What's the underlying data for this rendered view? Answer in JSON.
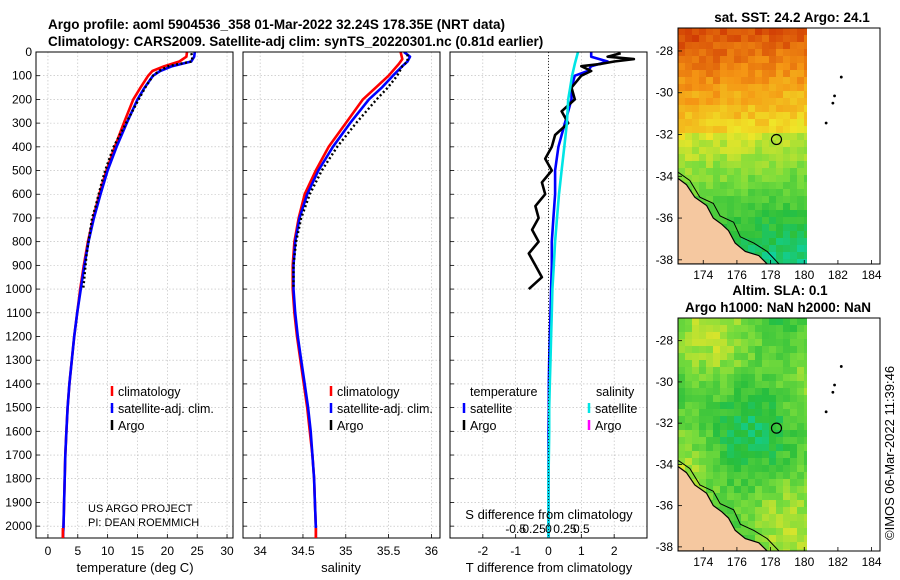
{
  "header": {
    "line1": "Argo profile: aoml 5904536_358 01-Mar-2022 32.24S 178.35E (NRT data)",
    "line2": "Climatology: CARS2009. Satellite-adj clim: synTS_20220301.nc (0.81d earlier)"
  },
  "credit": {
    "project": "US ARGO PROJECT",
    "pi": "PI: DEAN ROEMMICH"
  },
  "timestamp": "©IMOS 06-Mar-2022 11:39:46",
  "colors": {
    "climatology": "#ff0000",
    "satellite": "#0000ff",
    "argo": "#000000",
    "satellite_salinity": "#00e5e5",
    "argo_salinity": "#ff00ff"
  },
  "chart_data": [
    {
      "id": "temperature",
      "type": "line",
      "xlabel": "temperature (deg C)",
      "ylabel": "",
      "xlim": [
        -2,
        31
      ],
      "ylim": [
        2050,
        0
      ],
      "xticks": [
        0,
        5,
        10,
        15,
        20,
        25,
        30
      ],
      "yticks": [
        0,
        100,
        200,
        300,
        400,
        500,
        600,
        700,
        800,
        900,
        1000,
        1100,
        1200,
        1300,
        1400,
        1500,
        1600,
        1700,
        1800,
        1900,
        2000
      ],
      "legend": {
        "position": "center-right",
        "entries": [
          "climatology",
          "satellite-adj. clim.",
          "Argo"
        ]
      },
      "series": [
        {
          "name": "climatology",
          "color": "#ff0000",
          "depth": [
            0,
            20,
            40,
            60,
            80,
            100,
            150,
            200,
            300,
            400,
            500,
            600,
            700,
            800,
            900,
            1000,
            1100,
            1200,
            1300,
            1400,
            1500,
            1600,
            1700,
            1800,
            1900,
            2000,
            2050
          ],
          "values": [
            23.3,
            23.2,
            22.0,
            19.5,
            17.5,
            16.8,
            15.5,
            14.3,
            12.7,
            11.2,
            9.8,
            8.6,
            7.6,
            6.7,
            6.0,
            5.4,
            4.9,
            4.4,
            4.0,
            3.6,
            3.3,
            3.1,
            2.9,
            2.8,
            2.7,
            2.6,
            2.5
          ]
        },
        {
          "name": "satellite-adj. clim.",
          "color": "#0000ff",
          "depth": [
            0,
            20,
            40,
            60,
            80,
            100,
            150,
            200,
            300,
            400,
            500,
            600,
            700,
            800,
            900,
            1000,
            1100,
            1200,
            1300,
            1400,
            1500,
            1600,
            1700,
            1800,
            1900,
            2000,
            2050
          ],
          "values": [
            24.6,
            24.5,
            24.0,
            20.8,
            18.8,
            17.6,
            16.2,
            15.0,
            13.2,
            11.5,
            10.0,
            8.8,
            7.7,
            6.8,
            6.1,
            5.5,
            4.9,
            4.4,
            4.0,
            3.6,
            3.3,
            3.1,
            2.9,
            2.8,
            2.7,
            2.6,
            2.5
          ]
        },
        {
          "name": "Argo",
          "color": "#000000",
          "depth": [
            5,
            20,
            40,
            50,
            60,
            80,
            100,
            150,
            200,
            300,
            400,
            500,
            550,
            600,
            650,
            700,
            750,
            800,
            850,
            900,
            950,
            1000
          ],
          "values": [
            24.0,
            24.2,
            24.1,
            22.0,
            20.2,
            18.6,
            17.6,
            16.3,
            15.2,
            13.1,
            11.0,
            9.6,
            9.0,
            8.5,
            8.0,
            7.4,
            7.1,
            6.8,
            6.5,
            6.3,
            6.1,
            5.9
          ]
        }
      ]
    },
    {
      "id": "salinity",
      "type": "line",
      "xlabel": "salinity",
      "ylabel": "",
      "xlim": [
        33.8,
        36.1
      ],
      "ylim": [
        2050,
        0
      ],
      "xticks": [
        34,
        34.5,
        35,
        35.5,
        36
      ],
      "legend": {
        "position": "center-right",
        "entries": [
          "climatology",
          "satellite-adj. clim.",
          "Argo"
        ]
      },
      "series": [
        {
          "name": "climatology",
          "color": "#ff0000",
          "depth": [
            0,
            30,
            50,
            100,
            150,
            200,
            300,
            400,
            500,
            600,
            700,
            800,
            900,
            1000,
            1100,
            1200,
            1300,
            1400,
            1500,
            1600,
            1700,
            1800,
            1900,
            2000,
            2050
          ],
          "values": [
            35.64,
            35.66,
            35.62,
            35.5,
            35.35,
            35.2,
            35.0,
            34.8,
            34.65,
            34.52,
            34.45,
            34.4,
            34.38,
            34.38,
            34.4,
            34.43,
            34.47,
            34.51,
            34.55,
            34.58,
            34.61,
            34.63,
            34.64,
            34.65,
            34.65
          ]
        },
        {
          "name": "satellite-adj. clim.",
          "color": "#0000ff",
          "depth": [
            0,
            20,
            40,
            60,
            100,
            150,
            200,
            300,
            400,
            500,
            600,
            700,
            800,
            900,
            1000,
            1100,
            1200,
            1300,
            1400,
            1500,
            1600,
            1700,
            1800,
            1900,
            2000,
            2050
          ],
          "values": [
            35.68,
            35.75,
            35.72,
            35.66,
            35.55,
            35.42,
            35.27,
            35.05,
            34.85,
            34.68,
            34.55,
            34.46,
            34.41,
            34.39,
            34.39,
            34.41,
            34.44,
            34.48,
            34.52,
            34.56,
            34.59,
            34.61,
            34.63,
            34.64,
            34.65,
            34.65
          ]
        },
        {
          "name": "Argo",
          "color": "#000000",
          "depth": [
            10,
            40,
            60,
            100,
            150,
            200,
            300,
            400,
            500,
            600,
            700,
            800,
            900,
            1000
          ],
          "values": [
            35.72,
            35.72,
            35.66,
            35.6,
            35.49,
            35.36,
            35.12,
            34.9,
            34.72,
            34.58,
            34.48,
            34.42,
            34.39,
            34.39
          ]
        }
      ]
    },
    {
      "id": "difference",
      "type": "line",
      "xlabel": "T difference from climatology",
      "ylabel": "",
      "xlim": [
        -3,
        3
      ],
      "ylim": [
        2050,
        0
      ],
      "xticks": [
        -2,
        -1,
        0,
        1,
        2
      ],
      "secondary_axis": {
        "label": "S difference from climatology",
        "ticks": [
          "-0.5",
          "-0.25",
          "0",
          "0.25",
          "0.5"
        ]
      },
      "legend": {
        "position": "center",
        "temperature_title": "temperature",
        "salinity_title": "salinity",
        "temperature_entries": [
          "satellite",
          "Argo"
        ],
        "salinity_entries": [
          "satellite",
          "Argo"
        ]
      },
      "series": [
        {
          "name": "temperature satellite",
          "color": "#0000ff",
          "depth": [
            0,
            20,
            40,
            60,
            80,
            100,
            150,
            200,
            300,
            400,
            500,
            600,
            700,
            800,
            900,
            1000,
            1100,
            1200,
            1300,
            1400,
            1500,
            1600,
            1800,
            2000,
            2050
          ],
          "values": [
            1.3,
            1.3,
            1.8,
            1.3,
            1.2,
            0.8,
            0.7,
            0.7,
            0.5,
            0.3,
            0.2,
            0.2,
            0.15,
            0.1,
            0.1,
            0.08,
            0.06,
            0.04,
            0.02,
            0.01,
            0.01,
            0,
            0,
            0,
            0
          ]
        },
        {
          "name": "temperature Argo",
          "color": "#000000",
          "depth": [
            5,
            20,
            30,
            40,
            50,
            60,
            80,
            100,
            150,
            200,
            250,
            300,
            350,
            400,
            450,
            500,
            550,
            600,
            650,
            700,
            750,
            800,
            850,
            900,
            950,
            1000
          ],
          "values": [
            2.2,
            1.8,
            2.6,
            2.0,
            1.6,
            1.0,
            1.3,
            1.0,
            0.7,
            0.8,
            0.4,
            0.6,
            0.2,
            0.1,
            -0.1,
            0.1,
            -0.2,
            -0.1,
            -0.4,
            -0.3,
            -0.5,
            -0.3,
            -0.6,
            -0.4,
            -0.2,
            -0.6
          ]
        },
        {
          "name": "salinity satellite",
          "color": "#00e5e5",
          "depth": [
            0,
            50,
            100,
            150,
            200,
            300,
            400,
            500,
            600,
            700,
            800,
            900,
            1000,
            1100,
            1200,
            1300,
            1400,
            1500,
            1600,
            1800,
            2000,
            2050
          ],
          "values": [
            0.45,
            0.4,
            0.36,
            0.33,
            0.3,
            0.28,
            0.24,
            0.2,
            0.16,
            0.13,
            0.1,
            0.08,
            0.06,
            0.05,
            0.04,
            0.03,
            0.02,
            0.01,
            0.01,
            0,
            0,
            0
          ]
        }
      ]
    },
    {
      "id": "sst-map",
      "type": "heatmap",
      "title": "sat. SST: 24.2 Argo: 24.1",
      "xticks": [
        174,
        176,
        178,
        180,
        182,
        184
      ],
      "yticks": [
        -28,
        -30,
        -32,
        -34,
        -36,
        -38
      ],
      "xlim": [
        172.5,
        184.5
      ],
      "ylim": [
        -38.2,
        -26.9
      ],
      "data_extent_lon": [
        172.5,
        180
      ],
      "marker": {
        "lon": 178.35,
        "lat": -32.24
      },
      "islands": [
        {
          "lon": 182.2,
          "lat": -29.25
        },
        {
          "lon": 181.8,
          "lat": -30.15
        },
        {
          "lon": 181.7,
          "lat": -30.5
        },
        {
          "lon": 181.3,
          "lat": -31.45
        }
      ]
    },
    {
      "id": "sla-map",
      "type": "heatmap",
      "title_line1": "Altim. SLA: 0.1",
      "title_line2": "Argo h1000: NaN h2000: NaN",
      "xticks": [
        174,
        176,
        178,
        180,
        182,
        184
      ],
      "yticks": [
        -28,
        -30,
        -32,
        -34,
        -36,
        -38
      ],
      "xlim": [
        172.5,
        184.5
      ],
      "ylim": [
        -38.2,
        -26.9
      ],
      "data_extent_lon": [
        172.5,
        180
      ],
      "marker": {
        "lon": 178.35,
        "lat": -32.24
      },
      "islands": [
        {
          "lon": 182.2,
          "lat": -29.25
        },
        {
          "lon": 181.8,
          "lat": -30.15
        },
        {
          "lon": 181.7,
          "lat": -30.5
        },
        {
          "lon": 181.3,
          "lat": -31.45
        }
      ]
    }
  ]
}
